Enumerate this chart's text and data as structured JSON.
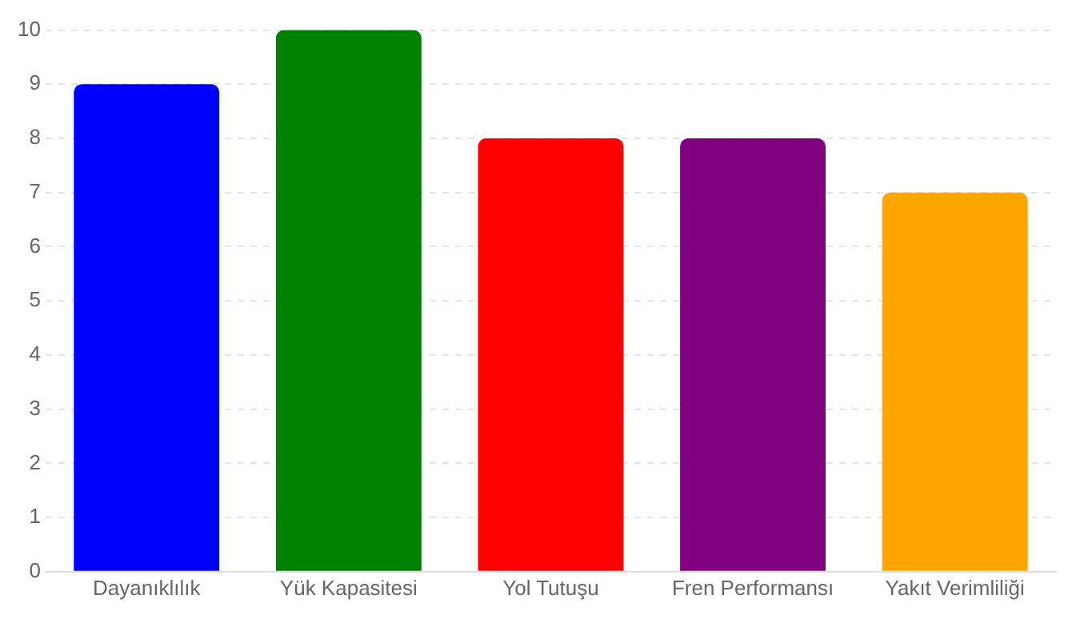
{
  "chart_data": {
    "type": "bar",
    "categories": [
      "Dayanıklılık",
      "Yük Kapasitesi",
      "Yol Tutuşu",
      "Fren Performansı",
      "Yakıt Verimliliği"
    ],
    "values": [
      9,
      10,
      8,
      8,
      7
    ],
    "colors": [
      "#0000ff",
      "#008000",
      "#ff0000",
      "#800080",
      "#ffa500"
    ],
    "ylim": [
      0,
      10
    ],
    "yticks": [
      0,
      1,
      2,
      3,
      4,
      5,
      6,
      7,
      8,
      9,
      10
    ],
    "grid": "y",
    "legend": false
  }
}
